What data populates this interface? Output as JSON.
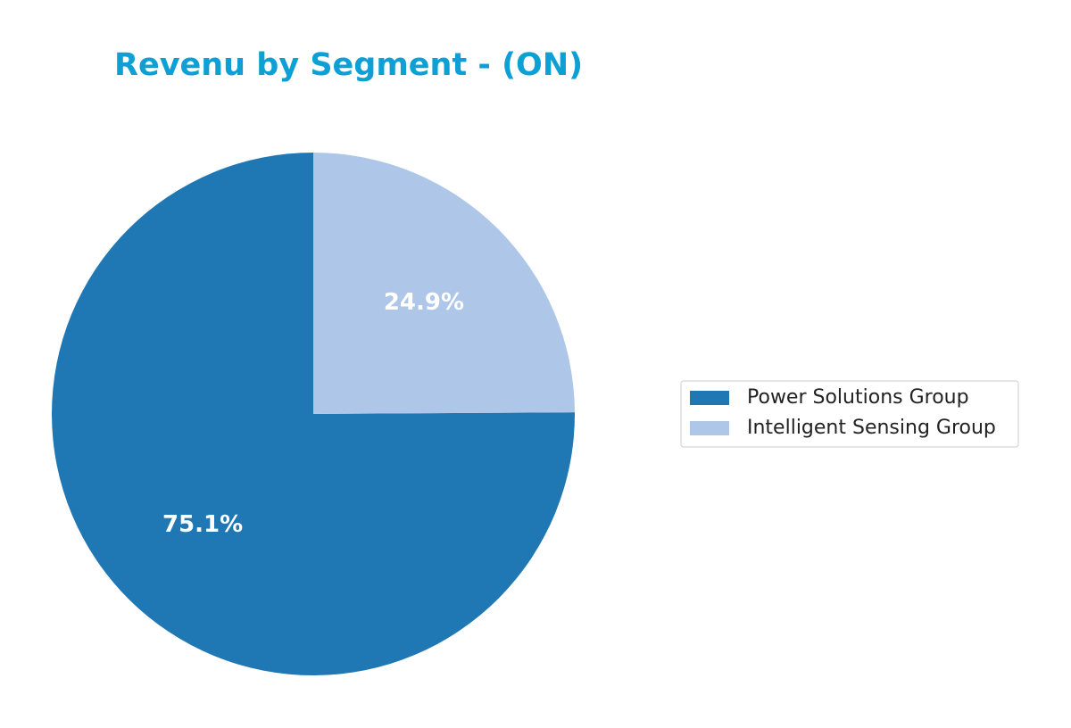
{
  "chart_data": {
    "type": "pie",
    "title": "Revenu by Segment - (ON)",
    "categories": [
      "Power Solutions Group",
      "Intelligent Sensing Group"
    ],
    "values": [
      75.1,
      24.9
    ],
    "value_labels": [
      "75.1%",
      "24.9%"
    ],
    "colors": [
      "#1f77b4",
      "#aec7e8"
    ],
    "legend": "right"
  }
}
